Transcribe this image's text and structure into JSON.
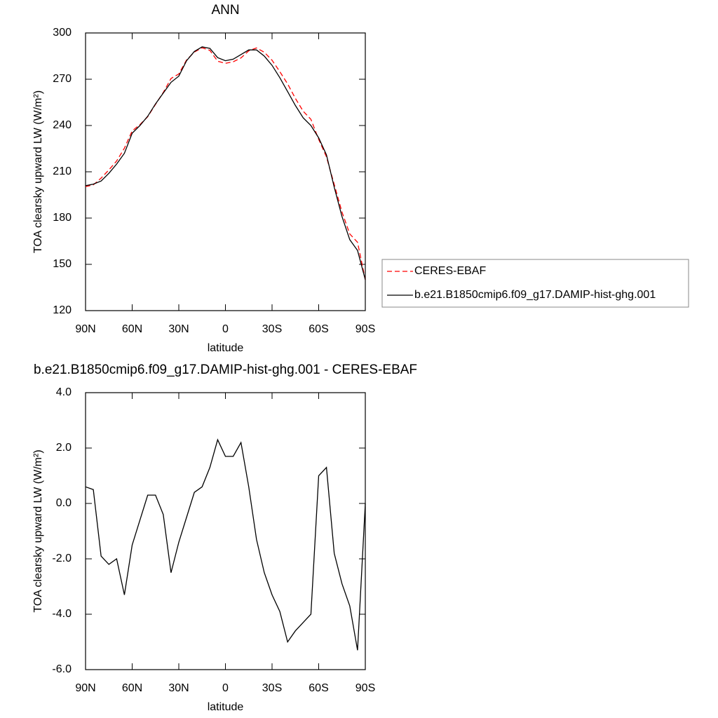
{
  "chart_data": [
    {
      "type": "line",
      "title": "ANN",
      "x_label": "latitude",
      "y_label": "TOA clearsky upward LW (W/m²)",
      "x": [
        90,
        85,
        80,
        75,
        70,
        65,
        60,
        55,
        50,
        45,
        40,
        35,
        30,
        25,
        20,
        15,
        10,
        5,
        0,
        -5,
        -10,
        -15,
        -20,
        -25,
        -30,
        -35,
        -40,
        -45,
        -50,
        -55,
        -60,
        -65,
        -70,
        -75,
        -80,
        -85,
        -90
      ],
      "xlim": [
        90,
        -90
      ],
      "xticks": [
        {
          "value": 90,
          "label": "90N"
        },
        {
          "value": 60,
          "label": "60N"
        },
        {
          "value": 30,
          "label": "30N"
        },
        0,
        {
          "value": -30,
          "label": "30S"
        },
        {
          "value": -60,
          "label": "60S"
        },
        {
          "value": -90,
          "label": "90S"
        }
      ],
      "ylim": [
        120,
        300
      ],
      "yticks": [
        120,
        150,
        180,
        210,
        240,
        270,
        300
      ],
      "legend": "right",
      "series": [
        {
          "name": "CERES-EBAF",
          "color": "#ff0000",
          "style": "dashed",
          "values": [
            200.4,
            201.5,
            205.9,
            211.2,
            217,
            225.3,
            236.5,
            240.6,
            245.7,
            253.7,
            261.4,
            270.5,
            273.4,
            282.5,
            287.6,
            290.4,
            288.7,
            281.7,
            280.3,
            281.3,
            283.8,
            288.4,
            290.3,
            287.5,
            282.3,
            274.9,
            267,
            257.6,
            249.3,
            244,
            231,
            219.7,
            201.8,
            183.9,
            169.7,
            164.3,
            140
          ]
        },
        {
          "name": "b.e21.B1850cmip6.f09_g17.DAMIP-hist-ghg.001",
          "color": "#000000",
          "style": "solid",
          "values": [
            201,
            202,
            204,
            209,
            215,
            222,
            235,
            240,
            246,
            254,
            261,
            268,
            272,
            282,
            288,
            291,
            290,
            284,
            282,
            283,
            286,
            289,
            289,
            285,
            279,
            271,
            262,
            253,
            245,
            240,
            232,
            221,
            200,
            181,
            166,
            159,
            140
          ]
        }
      ]
    },
    {
      "type": "line",
      "title": "b.e21.B1850cmip6.f09_g17.DAMIP-hist-ghg.001 - CERES-EBAF",
      "x_label": "latitude",
      "y_label": "TOA clearsky upward LW (W/m²)",
      "x": [
        90,
        85,
        80,
        75,
        70,
        65,
        60,
        55,
        50,
        45,
        40,
        35,
        30,
        25,
        20,
        15,
        10,
        5,
        0,
        -5,
        -10,
        -15,
        -20,
        -25,
        -30,
        -35,
        -40,
        -45,
        -50,
        -55,
        -60,
        -65,
        -70,
        -75,
        -80,
        -85,
        -90
      ],
      "xlim": [
        90,
        -90
      ],
      "xticks": [
        {
          "value": 90,
          "label": "90N"
        },
        {
          "value": 60,
          "label": "60N"
        },
        {
          "value": 30,
          "label": "30N"
        },
        0,
        {
          "value": -30,
          "label": "30S"
        },
        {
          "value": -60,
          "label": "60S"
        },
        {
          "value": -90,
          "label": "90S"
        }
      ],
      "ylim": [
        -6,
        4
      ],
      "yticks": [
        {
          "value": -6,
          "label": "-6.0"
        },
        {
          "value": -4,
          "label": "-4.0"
        },
        {
          "value": -2,
          "label": "-2.0"
        },
        {
          "value": 0,
          "label": "0.0"
        },
        {
          "value": 2,
          "label": "2.0"
        },
        {
          "value": 4,
          "label": "4.0"
        }
      ],
      "series": [
        {
          "color": "#000000",
          "style": "solid",
          "values": [
            0.6,
            0.5,
            -1.9,
            -2.2,
            -2.0,
            -3.3,
            -1.5,
            -0.6,
            0.3,
            0.3,
            -0.4,
            -2.5,
            -1.4,
            -0.5,
            0.4,
            0.6,
            1.3,
            2.3,
            1.7,
            1.7,
            2.2,
            0.6,
            -1.3,
            -2.5,
            -3.3,
            -3.9,
            -5.0,
            -4.6,
            -4.3,
            -4.0,
            1.0,
            1.3,
            -1.8,
            -2.9,
            -3.7,
            -5.3,
            0.0
          ]
        }
      ]
    }
  ]
}
